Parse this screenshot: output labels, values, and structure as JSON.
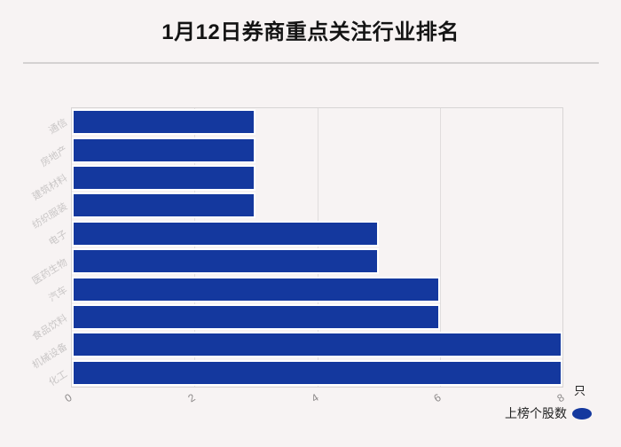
{
  "page": {
    "title": "1月12日券商重点关注行业排名",
    "axis_unit": "只"
  },
  "legend": {
    "label": "上榜个股数"
  },
  "colors": {
    "bar": "#14389e",
    "background": "#f7f3f3",
    "grid": "#e0dddd",
    "plot_border": "#d8d5d5",
    "y_label_text": "#c9c6c6",
    "x_tick_text": "#8d8a8a",
    "title_text": "#141414"
  },
  "chart_data": {
    "type": "bar",
    "orientation": "horizontal",
    "title": "1月12日券商重点关注行业排名",
    "categories": [
      "通信",
      "房地产",
      "建筑材料",
      "纺织服装",
      "电子",
      "医药生物",
      "汽车",
      "食品饮料",
      "机械设备",
      "化工"
    ],
    "series": [
      {
        "name": "上榜个股数",
        "values": [
          3,
          3,
          3,
          3,
          5,
          5,
          6,
          6,
          8,
          8
        ]
      }
    ],
    "xlim": [
      0,
      8
    ],
    "x_ticks": [
      0,
      2,
      4,
      6,
      8
    ],
    "x_unit": "只",
    "grid": true,
    "legend_position": "bottom-right",
    "category_order": "top-to-bottom"
  }
}
